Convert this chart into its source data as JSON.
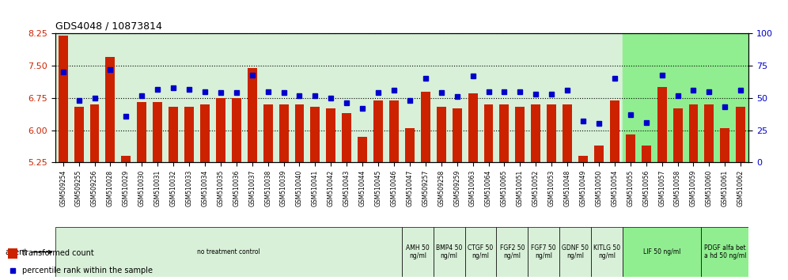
{
  "title": "GDS4048 / 10873814",
  "ylim_left": [
    5.25,
    8.25
  ],
  "ylim_right": [
    0,
    100
  ],
  "yticks_left": [
    5.25,
    6.0,
    6.75,
    7.5,
    8.25
  ],
  "yticks_right": [
    0,
    25,
    50,
    75,
    100
  ],
  "bar_color": "#cc2200",
  "dot_color": "#0000cc",
  "categories": [
    "GSM509254",
    "GSM509255",
    "GSM509256",
    "GSM510028",
    "GSM510029",
    "GSM510030",
    "GSM510031",
    "GSM510032",
    "GSM510033",
    "GSM510034",
    "GSM510035",
    "GSM510036",
    "GSM510037",
    "GSM510038",
    "GSM510039",
    "GSM510040",
    "GSM510041",
    "GSM510042",
    "GSM510043",
    "GSM510044",
    "GSM510045",
    "GSM510046",
    "GSM510047",
    "GSM509257",
    "GSM509258",
    "GSM509259",
    "GSM510063",
    "GSM510064",
    "GSM510065",
    "GSM510051",
    "GSM510052",
    "GSM510053",
    "GSM510048",
    "GSM510049",
    "GSM510050",
    "GSM510054",
    "GSM510055",
    "GSM510056",
    "GSM510057",
    "GSM510058",
    "GSM510059",
    "GSM510060",
    "GSM510061",
    "GSM510062"
  ],
  "bar_values": [
    8.2,
    6.55,
    6.6,
    7.7,
    5.4,
    6.65,
    6.65,
    6.55,
    6.55,
    6.6,
    6.75,
    6.75,
    7.45,
    6.6,
    6.6,
    6.6,
    6.55,
    6.5,
    6.4,
    5.85,
    6.7,
    6.7,
    6.05,
    6.9,
    6.55,
    6.5,
    6.85,
    6.6,
    6.6,
    6.55,
    6.6,
    6.6,
    6.6,
    5.4,
    5.65,
    6.7,
    5.9,
    5.65,
    7.0,
    6.5,
    6.6,
    6.6,
    6.05,
    6.55
  ],
  "dot_values": [
    70,
    48,
    50,
    72,
    36,
    52,
    57,
    58,
    57,
    55,
    54,
    54,
    68,
    55,
    54,
    52,
    52,
    50,
    46,
    42,
    54,
    56,
    48,
    65,
    54,
    51,
    67,
    55,
    55,
    55,
    53,
    53,
    56,
    32,
    30,
    65,
    37,
    31,
    68,
    52,
    56,
    55,
    43,
    56
  ],
  "agent_groups": [
    {
      "label": "no treatment control",
      "start": 0,
      "end": 22,
      "color": "#d8f0d8"
    },
    {
      "label": "AMH 50\nng/ml",
      "start": 22,
      "end": 24,
      "color": "#d8f0d8"
    },
    {
      "label": "BMP4 50\nng/ml",
      "start": 24,
      "end": 26,
      "color": "#d8f0d8"
    },
    {
      "label": "CTGF 50\nng/ml",
      "start": 26,
      "end": 28,
      "color": "#d8f0d8"
    },
    {
      "label": "FGF2 50\nng/ml",
      "start": 28,
      "end": 30,
      "color": "#d8f0d8"
    },
    {
      "label": "FGF7 50\nng/ml",
      "start": 30,
      "end": 32,
      "color": "#d8f0d8"
    },
    {
      "label": "GDNF 50\nng/ml",
      "start": 32,
      "end": 34,
      "color": "#d8f0d8"
    },
    {
      "label": "KITLG 50\nng/ml",
      "start": 34,
      "end": 36,
      "color": "#d8f0d8"
    },
    {
      "label": "LIF 50 ng/ml",
      "start": 36,
      "end": 41,
      "color": "#90ee90"
    },
    {
      "label": "PDGF alfa bet\na hd 50 ng/ml",
      "start": 41,
      "end": 44,
      "color": "#90ee90"
    }
  ]
}
